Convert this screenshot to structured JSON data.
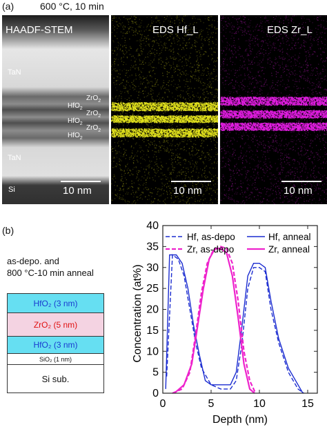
{
  "panel_a": {
    "letter": "(a)",
    "condition": "600 °C, 10 min",
    "stem": {
      "title": "HAADF-STEM",
      "scale": "10 nm",
      "labels": {
        "tan_top": "TaN",
        "zro2_1": "ZrO",
        "hfo2_1": "HfO",
        "zro2_2": "ZrO",
        "hfo2_2": "HfO",
        "zro2_3": "ZrO",
        "hfo2_3": "HfO",
        "tan_bottom": "TaN",
        "si": "Si",
        "sub2": "2"
      }
    },
    "eds_hf": {
      "title": "EDS Hf_L",
      "scale": "10 nm",
      "color": "#e6e61e"
    },
    "eds_zr": {
      "title": "EDS Zr_L",
      "scale": "10 nm",
      "color": "#e61ee6"
    }
  },
  "panel_b": {
    "letter": "(b)",
    "note_line1": "as-depo. and",
    "note_line2": "800 °C-10 min anneal",
    "stack": {
      "hfo2_top": "HfO₂ (3 nm)",
      "zro2": "ZrO₂ (5 nm)",
      "hfo2_bottom": "HfO₂ (3 nm)",
      "sio2": "SiO₂ (1 nm)",
      "si": "Si sub.",
      "colors": {
        "hfo2": "#66dff2",
        "zro2": "#f4d3e2",
        "text_hfo2": "#1a3bd0",
        "text_zro2": "#e01010"
      }
    }
  },
  "chart_data": {
    "type": "line",
    "xlabel": "Depth (nm)",
    "ylabel": "Concentration (at%)",
    "xlim": [
      0,
      16
    ],
    "ylim": [
      0,
      40
    ],
    "xticks": [
      0,
      5,
      10,
      15
    ],
    "yticks": [
      0,
      5,
      10,
      15,
      20,
      25,
      30,
      35,
      40
    ],
    "legend_placement": "top",
    "series": [
      {
        "name": "Hf, as-depo",
        "color": "#1a2bd0",
        "dash": "dashed",
        "width": 1.4,
        "x": [
          0.4,
          1.0,
          1.6,
          2.2,
          2.8,
          3.4,
          4.0,
          5.0,
          6.0,
          7.0,
          7.6,
          8.2,
          8.8,
          9.4,
          10.0,
          10.6,
          11.2,
          12.0,
          13.0,
          14.0,
          14.6
        ],
        "y": [
          4,
          33,
          32,
          28,
          20,
          12,
          6,
          2,
          1,
          1,
          3,
          12,
          25,
          30,
          30,
          29,
          20,
          12,
          5,
          1,
          0
        ]
      },
      {
        "name": "Hf, anneal",
        "color": "#1a2bd0",
        "dash": "solid",
        "width": 1.4,
        "x": [
          0.3,
          0.7,
          1.4,
          2.0,
          2.6,
          3.2,
          3.8,
          4.4,
          5.0,
          6.0,
          7.0,
          7.6,
          8.2,
          8.8,
          9.4,
          10.0,
          10.6,
          11.2,
          12.0,
          13.0,
          14.0,
          14.5
        ],
        "y": [
          1,
          33,
          33,
          31,
          25,
          16,
          9,
          3,
          2,
          2,
          2,
          5,
          16,
          28,
          31,
          31,
          30,
          22,
          13,
          6,
          2,
          0
        ]
      },
      {
        "name": "Zr, as-depo",
        "color": "#ee22cc",
        "dash": "dashed",
        "width": 2.2,
        "x": [
          1.0,
          2.0,
          2.8,
          3.4,
          4.0,
          4.6,
          5.2,
          6.0,
          6.6,
          7.2,
          7.8,
          8.4,
          9.0,
          9.6
        ],
        "y": [
          0,
          1,
          5,
          14,
          24,
          31,
          34,
          35,
          34.5,
          31,
          22,
          10,
          3,
          0
        ]
      },
      {
        "name": "Zr, anneal",
        "color": "#ee22cc",
        "dash": "solid",
        "width": 2.2,
        "x": [
          1.2,
          2.2,
          3.0,
          3.6,
          4.2,
          4.8,
          5.4,
          6.0,
          6.6,
          7.2,
          7.8,
          8.4,
          9.0,
          9.5
        ],
        "y": [
          0,
          2,
          7,
          16,
          25,
          32,
          34.5,
          34.5,
          33.5,
          28,
          18,
          7,
          1,
          0
        ]
      }
    ]
  }
}
